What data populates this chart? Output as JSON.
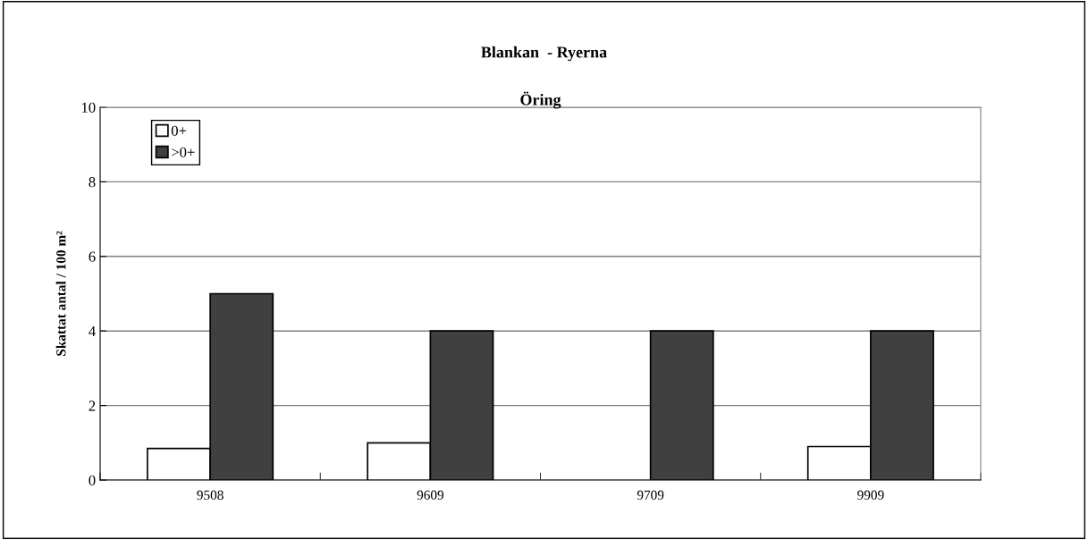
{
  "chart_data": {
    "type": "bar",
    "title": "Blankan  - Ryerna",
    "subtitle": "Öring",
    "ylabel": "Skattat antal / 100 m²",
    "categories": [
      "9508",
      "9609",
      "9709",
      "9909"
    ],
    "series": [
      {
        "name": "0+",
        "color": "#ffffff",
        "values": [
          0.85,
          1.0,
          null,
          0.9
        ]
      },
      {
        "name": ">0+",
        "color": "#404040",
        "values": [
          5,
          4,
          4,
          4
        ]
      }
    ],
    "ylim": [
      0,
      10
    ],
    "yticks": [
      0,
      2,
      4,
      6,
      8,
      10
    ],
    "grid": "y",
    "legend": "top left"
  }
}
